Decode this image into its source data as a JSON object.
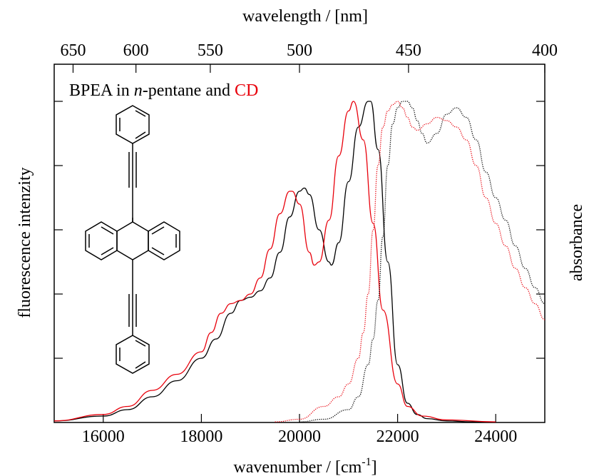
{
  "chart_data": {
    "type": "line",
    "annotation": {
      "parts": [
        {
          "text": "BPEA in ",
          "style": "normal",
          "color": "#000000"
        },
        {
          "text": "n",
          "style": "italic",
          "color": "#000000"
        },
        {
          "text": "-pentane and ",
          "style": "normal",
          "color": "#000000"
        },
        {
          "text": "CD",
          "style": "normal",
          "color": "#e8000b"
        }
      ]
    },
    "xlabel_bottom": {
      "base": "wavenumber / [cm",
      "superscript": "-1",
      "suffix": "]"
    },
    "xlabel_top": "wavelength / [nm]",
    "ylabel_left": "fluorescence intenzity",
    "ylabel_right": "absorbance",
    "xlim": [
      15000,
      25000
    ],
    "ylim": [
      0,
      1
    ],
    "x_ticks": [
      16000,
      18000,
      20000,
      22000,
      24000
    ],
    "x_tick_labels": [
      "16000",
      "18000",
      "20000",
      "22000",
      "24000"
    ],
    "top_ticks_nm": [
      650,
      600,
      550,
      500,
      450,
      400
    ],
    "top_tick_labels": [
      "650",
      "600",
      "550",
      "500",
      "450",
      "400"
    ],
    "y_ticks": [
      0,
      0.2,
      0.4,
      0.6,
      0.8,
      1.0
    ],
    "grid": false,
    "series": [
      {
        "color": "#000000",
        "style": "solid",
        "x": [
          15000,
          16000,
          16500,
          17000,
          17500,
          18000,
          18300,
          18600,
          18800,
          19000,
          19200,
          19400,
          19600,
          19800,
          20000,
          20100,
          20200,
          20400,
          20600,
          20650,
          20800,
          21000,
          21200,
          21400,
          21450,
          21600,
          21800,
          22000,
          22200,
          22400,
          22600,
          23000,
          23500,
          24000
        ],
        "y": [
          0.005,
          0.02,
          0.04,
          0.08,
          0.13,
          0.2,
          0.26,
          0.34,
          0.38,
          0.39,
          0.41,
          0.45,
          0.53,
          0.64,
          0.72,
          0.73,
          0.71,
          0.6,
          0.5,
          0.49,
          0.56,
          0.75,
          0.92,
          1.0,
          1.0,
          0.85,
          0.5,
          0.18,
          0.06,
          0.025,
          0.012,
          0.005,
          0.002,
          0.001
        ]
      },
      {
        "color": "#e8000b",
        "style": "solid",
        "x": [
          15000,
          16000,
          16500,
          17000,
          17500,
          18000,
          18200,
          18400,
          18600,
          18800,
          19000,
          19200,
          19400,
          19600,
          19800,
          19850,
          20000,
          20200,
          20300,
          20400,
          20600,
          20800,
          21000,
          21100,
          21300,
          21500,
          21700,
          22000,
          22200,
          22500,
          23000,
          24000
        ],
        "y": [
          0.005,
          0.025,
          0.05,
          0.1,
          0.15,
          0.22,
          0.28,
          0.34,
          0.37,
          0.38,
          0.4,
          0.45,
          0.54,
          0.65,
          0.72,
          0.72,
          0.68,
          0.53,
          0.49,
          0.5,
          0.63,
          0.83,
          0.97,
          1.0,
          0.88,
          0.62,
          0.35,
          0.12,
          0.05,
          0.02,
          0.008,
          0.002
        ]
      },
      {
        "color": "#000000",
        "style": "dotted",
        "x": [
          20000,
          20500,
          21000,
          21200,
          21400,
          21500,
          21600,
          21700,
          21800,
          21900,
          22000,
          22100,
          22200,
          22300,
          22400,
          22500,
          22600,
          22800,
          23000,
          23200,
          23400,
          23600,
          23800,
          24000,
          24200,
          24400,
          24600,
          24800,
          25000
        ],
        "y": [
          0.002,
          0.01,
          0.04,
          0.08,
          0.18,
          0.26,
          0.38,
          0.58,
          0.8,
          0.93,
          0.98,
          1.0,
          1.0,
          0.98,
          0.94,
          0.9,
          0.87,
          0.9,
          0.96,
          0.98,
          0.95,
          0.88,
          0.78,
          0.7,
          0.63,
          0.55,
          0.48,
          0.42,
          0.37
        ]
      },
      {
        "color": "#e8000b",
        "style": "dotted",
        "x": [
          19500,
          20000,
          20500,
          20800,
          21000,
          21200,
          21300,
          21400,
          21500,
          21600,
          21700,
          21800,
          21900,
          22000,
          22100,
          22200,
          22300,
          22400,
          22600,
          22800,
          23000,
          23200,
          23400,
          23600,
          23800,
          24000,
          24200,
          24400,
          24600,
          24800,
          25000
        ],
        "y": [
          0.002,
          0.01,
          0.05,
          0.08,
          0.12,
          0.2,
          0.28,
          0.4,
          0.6,
          0.8,
          0.92,
          0.97,
          0.99,
          1.0,
          0.98,
          0.95,
          0.92,
          0.91,
          0.93,
          0.95,
          0.94,
          0.92,
          0.88,
          0.8,
          0.7,
          0.62,
          0.55,
          0.48,
          0.42,
          0.37,
          0.32
        ]
      }
    ]
  }
}
